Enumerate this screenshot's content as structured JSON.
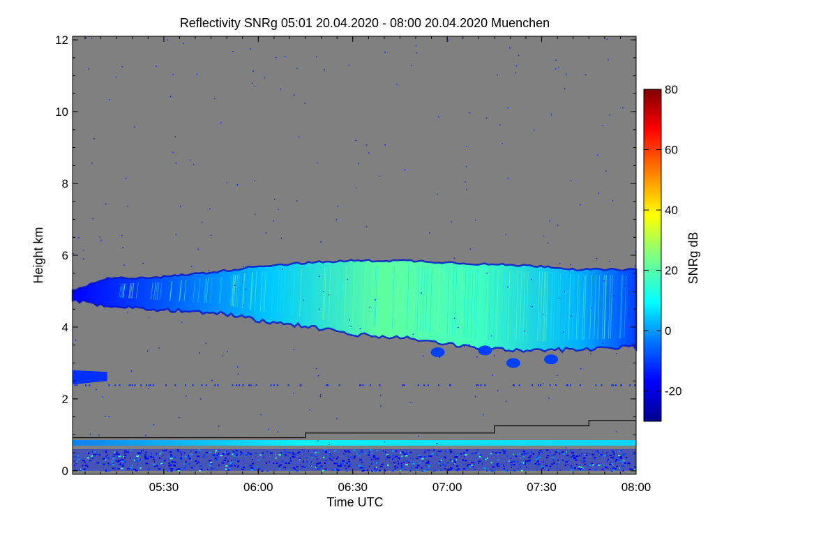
{
  "chart_data": {
    "type": "heatmap",
    "title": "Reflectivity SNRg   05:01 20.04.2020 - 08:00 20.04.2020 Muenchen",
    "xlabel": "Time UTC",
    "ylabel": "Height km",
    "x_tick_labels": [
      "05:30",
      "06:00",
      "06:30",
      "07:00",
      "07:30",
      "08:00"
    ],
    "x_tick_values_hours": [
      5.5,
      6.0,
      6.5,
      7.0,
      7.5,
      8.0
    ],
    "xlim_hours": [
      5.0167,
      8.0
    ],
    "y_tick_labels": [
      "0",
      "2",
      "4",
      "6",
      "8",
      "10",
      "12"
    ],
    "y_tick_values": [
      0,
      2,
      4,
      6,
      8,
      10,
      12
    ],
    "ylim": [
      -0.1,
      12.1
    ],
    "background_color": "#808080",
    "colorbar": {
      "label": "SNRg dB",
      "range": [
        -30,
        80
      ],
      "tick_labels": [
        "-20",
        "0",
        "20",
        "40",
        "60",
        "80"
      ],
      "tick_values": [
        -20,
        0,
        20,
        40,
        60,
        80
      ],
      "colormap": [
        "#00008f",
        "#0000ff",
        "#0080ff",
        "#00ffff",
        "#80ff80",
        "#ffff00",
        "#ff8000",
        "#ff0000",
        "#800000"
      ]
    },
    "cloud_layer": {
      "description": "main echo layer",
      "time_hours": [
        5.0167,
        5.2,
        5.5,
        5.8,
        6.0,
        6.3,
        6.5,
        6.8,
        7.0,
        7.2,
        7.5,
        7.7,
        8.0
      ],
      "top_km": [
        5.0,
        5.35,
        5.4,
        5.55,
        5.7,
        5.8,
        5.85,
        5.85,
        5.8,
        5.75,
        5.7,
        5.6,
        5.6
      ],
      "base_km": [
        4.8,
        4.65,
        4.55,
        4.45,
        4.25,
        4.05,
        3.85,
        3.75,
        3.6,
        3.45,
        3.4,
        3.45,
        3.5
      ],
      "core_snr_db": 25
    },
    "lower_echo": {
      "time_hours": [
        5.0167,
        5.2
      ],
      "height_km": [
        2.4,
        2.8
      ],
      "snr_db": -10
    },
    "boundary_layer_line": {
      "time_hours": [
        5.0167,
        6.25,
        6.25,
        7.25,
        7.25,
        7.75,
        7.75,
        8.0
      ],
      "height_km": [
        0.92,
        0.92,
        1.05,
        1.05,
        1.25,
        1.25,
        1.4,
        1.4
      ]
    },
    "near_surface_band_km": [
      0.7,
      0.85
    ],
    "noise_band_km": [
      0.0,
      0.6
    ]
  }
}
